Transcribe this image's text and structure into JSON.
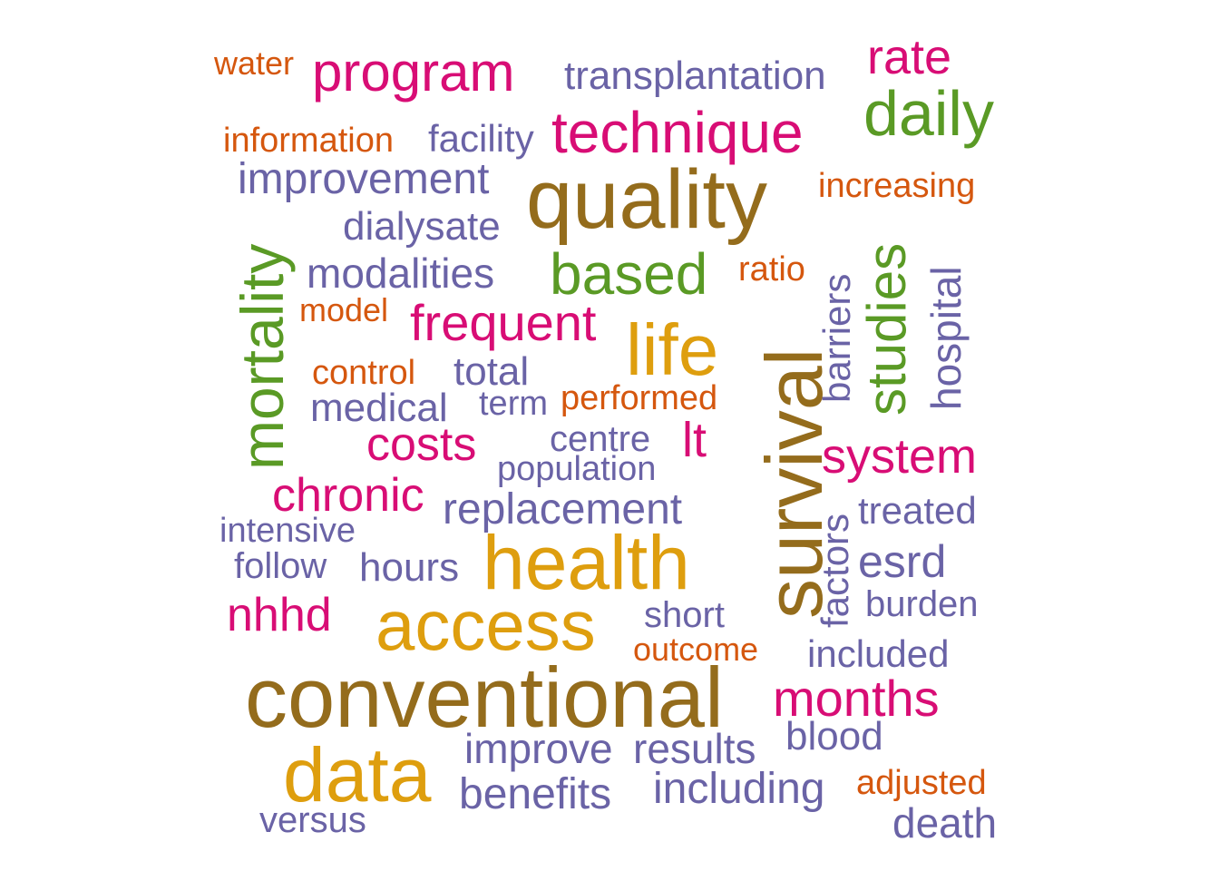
{
  "colors": {
    "brown": "#946C1C",
    "gold": "#DE9E0E",
    "green": "#5A9A25",
    "magenta": "#D80D75",
    "purple": "#6A63A6",
    "orange": "#D5570E"
  },
  "words": [
    {
      "text": "conventional",
      "color": "brown"
    },
    {
      "text": "quality",
      "color": "brown"
    },
    {
      "text": "survival",
      "color": "brown"
    },
    {
      "text": "health",
      "color": "gold"
    },
    {
      "text": "access",
      "color": "gold"
    },
    {
      "text": "data",
      "color": "gold"
    },
    {
      "text": "life",
      "color": "gold"
    },
    {
      "text": "mortality",
      "color": "green"
    },
    {
      "text": "based",
      "color": "green"
    },
    {
      "text": "daily",
      "color": "green"
    },
    {
      "text": "studies",
      "color": "green"
    },
    {
      "text": "technique",
      "color": "magenta"
    },
    {
      "text": "program",
      "color": "magenta"
    },
    {
      "text": "rate",
      "color": "magenta"
    },
    {
      "text": "frequent",
      "color": "magenta"
    },
    {
      "text": "system",
      "color": "magenta"
    },
    {
      "text": "months",
      "color": "magenta"
    },
    {
      "text": "costs",
      "color": "magenta"
    },
    {
      "text": "chronic",
      "color": "magenta"
    },
    {
      "text": "nhhd",
      "color": "magenta"
    },
    {
      "text": "lt",
      "color": "magenta"
    },
    {
      "text": "transplantation",
      "color": "purple"
    },
    {
      "text": "improvement",
      "color": "purple"
    },
    {
      "text": "facility",
      "color": "purple"
    },
    {
      "text": "dialysate",
      "color": "purple"
    },
    {
      "text": "modalities",
      "color": "purple"
    },
    {
      "text": "total",
      "color": "purple"
    },
    {
      "text": "medical",
      "color": "purple"
    },
    {
      "text": "term",
      "color": "purple"
    },
    {
      "text": "centre",
      "color": "purple"
    },
    {
      "text": "population",
      "color": "purple"
    },
    {
      "text": "replacement",
      "color": "purple"
    },
    {
      "text": "intensive",
      "color": "purple"
    },
    {
      "text": "follow",
      "color": "purple"
    },
    {
      "text": "hours",
      "color": "purple"
    },
    {
      "text": "short",
      "color": "purple"
    },
    {
      "text": "treated",
      "color": "purple"
    },
    {
      "text": "esrd",
      "color": "purple"
    },
    {
      "text": "burden",
      "color": "purple"
    },
    {
      "text": "included",
      "color": "purple"
    },
    {
      "text": "blood",
      "color": "purple"
    },
    {
      "text": "improve",
      "color": "purple"
    },
    {
      "text": "results",
      "color": "purple"
    },
    {
      "text": "benefits",
      "color": "purple"
    },
    {
      "text": "including",
      "color": "purple"
    },
    {
      "text": "versus",
      "color": "purple"
    },
    {
      "text": "death",
      "color": "purple"
    },
    {
      "text": "barriers",
      "color": "purple"
    },
    {
      "text": "hospital",
      "color": "purple"
    },
    {
      "text": "factors",
      "color": "purple"
    },
    {
      "text": "water",
      "color": "orange"
    },
    {
      "text": "information",
      "color": "orange"
    },
    {
      "text": "increasing",
      "color": "orange"
    },
    {
      "text": "ratio",
      "color": "orange"
    },
    {
      "text": "model",
      "color": "orange"
    },
    {
      "text": "control",
      "color": "orange"
    },
    {
      "text": "performed",
      "color": "orange"
    },
    {
      "text": "outcome",
      "color": "orange"
    },
    {
      "text": "adjusted",
      "color": "orange"
    }
  ]
}
